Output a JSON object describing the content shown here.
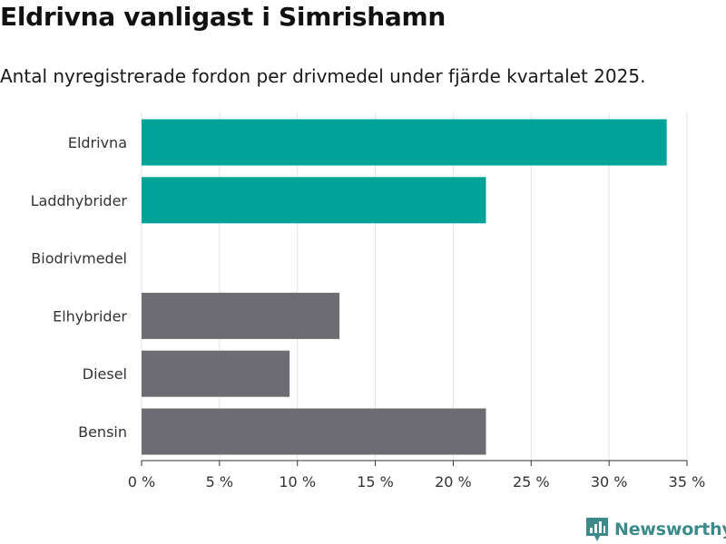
{
  "header": {
    "title": "Eldrivna vanligast i Simrishamn",
    "subtitle": "Antal nyregistrerade fordon per drivmedel under fjärde kvartalet 2025."
  },
  "chart_data": {
    "type": "bar",
    "orientation": "horizontal",
    "title": "Eldrivna vanligast i Simrishamn",
    "subtitle": "Antal nyregistrerade fordon per drivmedel under fjärde kvartalet 2025.",
    "categories": [
      "Eldrivna",
      "Laddhybrider",
      "Biodrivmedel",
      "Elhybrider",
      "Diesel",
      "Bensin"
    ],
    "values": [
      33.7,
      22.1,
      0,
      12.7,
      9.5,
      22.1
    ],
    "unit": "%",
    "bar_colors": [
      "#00a397",
      "#00a397",
      "#00a397",
      "#6d6c73",
      "#6d6c73",
      "#6d6c73"
    ],
    "xlim": [
      0,
      35
    ],
    "xticks": [
      0,
      5,
      10,
      15,
      20,
      25,
      30,
      35
    ],
    "xtick_labels": [
      "0 %",
      "5 %",
      "10 %",
      "15 %",
      "20 %",
      "25 %",
      "30 %",
      "35 %"
    ],
    "xlabel": "",
    "ylabel": "",
    "grid": true
  },
  "brand": {
    "name": "Newsworthy",
    "icon": "newsworthy-logo-icon",
    "color": "#3d8a8a"
  }
}
